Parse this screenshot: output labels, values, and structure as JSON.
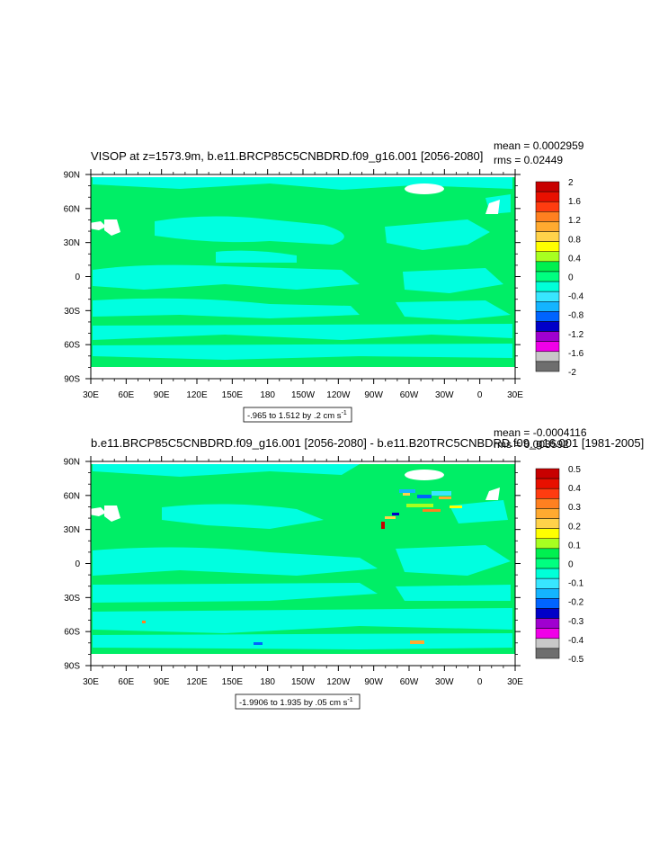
{
  "chart_data": [
    {
      "type": "heatmap",
      "title": "VISOP at z=1573.9m, b.e11.BRCP85C5CNBDRD.f09_g16.001 [2056-2080]",
      "stats": {
        "mean": "mean = 0.0002959",
        "rms": "rms = 0.02449"
      },
      "range_label": "-.965 to 1.512 by .2 cm s",
      "range_unit_sup": "-1",
      "x_ticks": [
        "30E",
        "60E",
        "90E",
        "120E",
        "150E",
        "180",
        "150W",
        "120W",
        "90W",
        "60W",
        "30W",
        "0",
        "30E"
      ],
      "y_ticks": [
        "90N",
        "60N",
        "30N",
        "0",
        "30S",
        "60S",
        "90S"
      ],
      "colorbar": {
        "labels": [
          "2",
          "1.6",
          "1.2",
          "0.8",
          "0.4",
          "0",
          "-0.4",
          "-0.8",
          "-1.2",
          "-1.6",
          "-2"
        ],
        "colors": [
          "#c80000",
          "#e81000",
          "#ff3c10",
          "#ff8020",
          "#ffaa30",
          "#ffd24a",
          "#ffff00",
          "#a8ff20",
          "#00f050",
          "#00ff80",
          "#00ffd8",
          "#38e6ff",
          "#14b4ff",
          "#0064ff",
          "#0000c8",
          "#a000d0",
          "#f000e8",
          "#c8c8c8",
          "#6e6e6e"
        ]
      },
      "dominant_value_class": "0",
      "secondary_value_class": "-0.4"
    },
    {
      "type": "heatmap",
      "title": "b.e11.BRCP85C5CNBDRD.f09_g16.001 [2056-2080] - b.e11.B20TRC5CNBDRD.f09_g16.001 [1981-2005]",
      "stats": {
        "mean": "mean = -0.0004116",
        "rms": "rms = 0.003592"
      },
      "range_label": "-1.9906 to 1.935 by .05 cm s",
      "range_unit_sup": "-1",
      "x_ticks": [
        "30E",
        "60E",
        "90E",
        "120E",
        "150E",
        "180",
        "150W",
        "120W",
        "90W",
        "60W",
        "30W",
        "0",
        "30E"
      ],
      "y_ticks": [
        "90N",
        "60N",
        "30N",
        "0",
        "30S",
        "60S",
        "90S"
      ],
      "colorbar": {
        "labels": [
          "0.5",
          "0.4",
          "0.3",
          "0.2",
          "0.1",
          "0",
          "-0.1",
          "-0.2",
          "-0.3",
          "-0.4",
          "-0.5"
        ],
        "colors": [
          "#c80000",
          "#e81000",
          "#ff3c10",
          "#ff8020",
          "#ffaa30",
          "#ffd24a",
          "#ffff00",
          "#a8ff20",
          "#00f050",
          "#00ff80",
          "#00ffd8",
          "#38e6ff",
          "#14b4ff",
          "#0064ff",
          "#0000c8",
          "#a000d0",
          "#f000e8",
          "#c8c8c8",
          "#6e6e6e"
        ]
      },
      "dominant_value_class": "0",
      "secondary_value_class": "-0.1"
    }
  ],
  "colors": {
    "green": "#00ee66",
    "cyan": "#00ffe0",
    "land": "#ffffff"
  }
}
